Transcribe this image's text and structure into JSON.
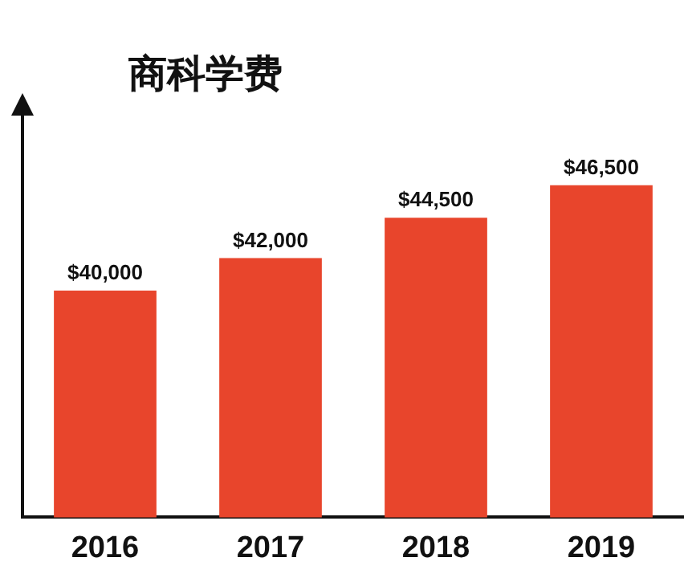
{
  "chart_data": {
    "type": "bar",
    "title": "商科学费",
    "categories": [
      "2016",
      "2017",
      "2018",
      "2019"
    ],
    "values": [
      40000,
      42000,
      44500,
      46500
    ],
    "value_labels": [
      "$40,000",
      "$42,000",
      "$44,500",
      "$46,500"
    ],
    "color": "#e8452c",
    "ylim": [
      26000,
      51000
    ],
    "tick_labels": "x",
    "grid": false,
    "legend": false
  }
}
